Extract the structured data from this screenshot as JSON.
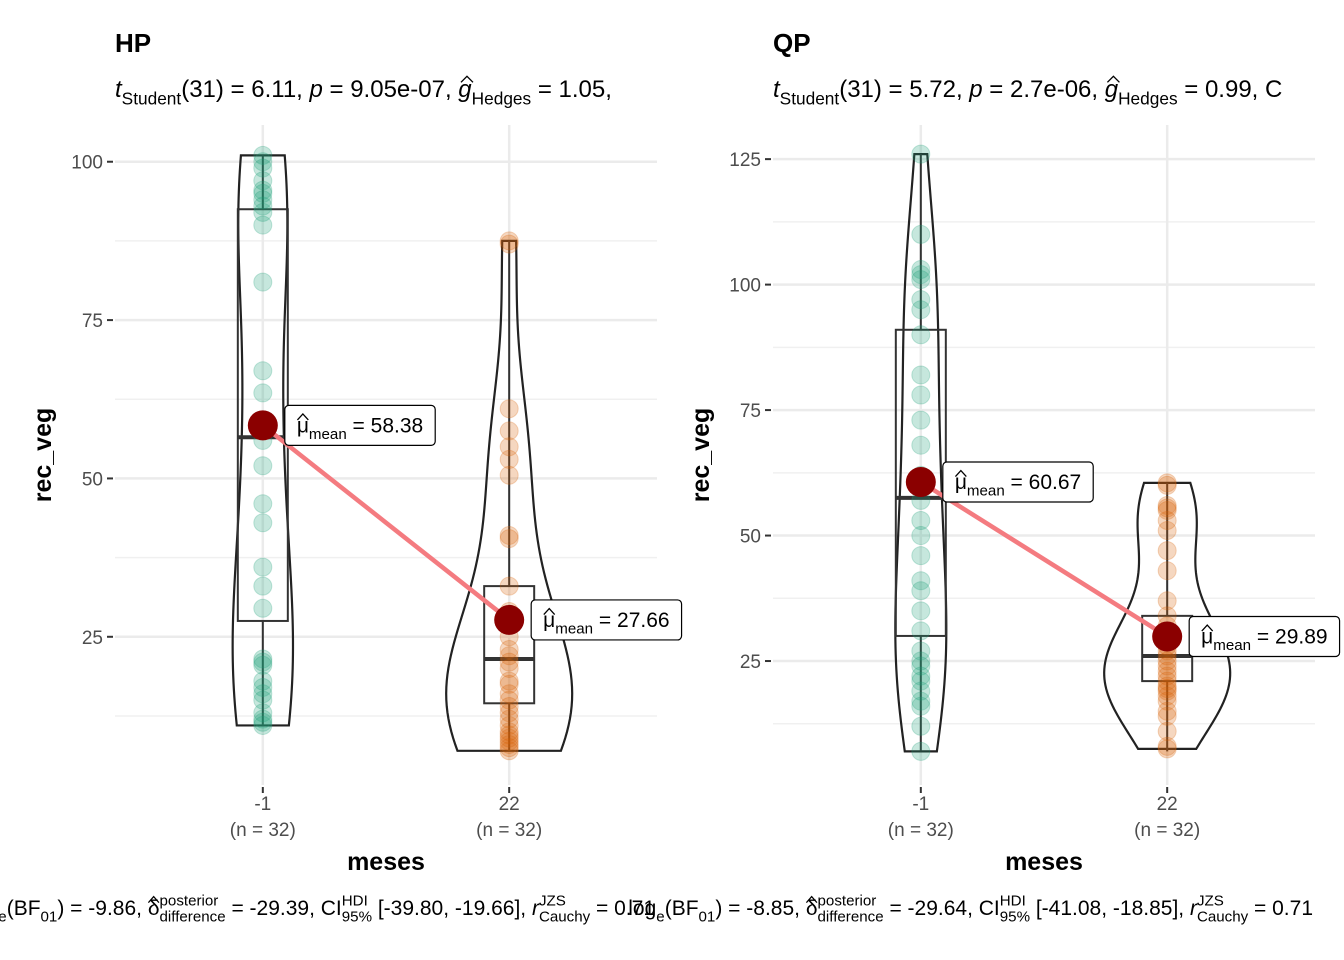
{
  "chart_data": [
    {
      "type": "violin-box",
      "title": "HP",
      "subtitle": [
        {
          "text": "t",
          "style": "italic"
        },
        {
          "text": "Student",
          "style": "sub"
        },
        {
          "text": "(31) = 6.11, ",
          "style": "normal"
        },
        {
          "text": "p",
          "style": "italic"
        },
        {
          "text": " = 9.05e-07, ",
          "style": "normal"
        },
        {
          "text": "g",
          "style": "ihat"
        },
        {
          "text": "Hedges",
          "style": "sub"
        },
        {
          "text": " = 1.05,",
          "style": "normal"
        }
      ],
      "caption": [
        {
          "text": "log",
          "style": "normal"
        },
        {
          "text": "e",
          "style": "sub"
        },
        {
          "text": "(BF",
          "style": "normal"
        },
        {
          "text": "01",
          "style": "sub"
        },
        {
          "text": ") = -9.86, ",
          "style": "normal"
        },
        {
          "text": "δ",
          "style": "hat"
        },
        {
          "text": "posterior",
          "style": "sup"
        },
        {
          "text": "difference",
          "style": "sub"
        },
        {
          "text": " = -29.39, CI",
          "style": "normal"
        },
        {
          "text": "HDI",
          "style": "sup"
        },
        {
          "text": "95%",
          "style": "sub"
        },
        {
          "text": " [-39.80, -19.66], ",
          "style": "normal"
        },
        {
          "text": "r",
          "style": "italic"
        },
        {
          "text": "JZS",
          "style": "sup"
        },
        {
          "text": "Cauchy",
          "style": "sub"
        },
        {
          "text": " = 0.71",
          "style": "normal"
        }
      ],
      "x_label": "meses",
      "y_label": "rec_veg",
      "categories": [
        "-1",
        "22"
      ],
      "n_labels": [
        "(n = 32)",
        "(n = 32)"
      ],
      "colors": [
        "#1b9e77",
        "#d95f02"
      ],
      "points": [
        [
          101,
          100,
          99,
          97,
          95.5,
          95,
          94,
          93,
          92,
          90,
          81,
          67,
          63.5,
          59,
          56,
          52,
          46,
          43,
          36,
          33,
          29.5,
          21.5,
          21,
          20.5,
          18,
          17,
          16,
          15,
          13,
          12,
          11.5,
          11
        ],
        [
          87.5,
          87,
          61,
          57.5,
          55,
          53,
          50.5,
          41,
          40.5,
          33,
          29,
          27,
          25,
          23,
          22,
          21,
          20,
          18,
          17.5,
          16,
          15,
          14,
          13,
          12,
          11,
          10,
          9.5,
          9,
          8.5,
          8,
          7.5,
          7
        ]
      ],
      "box": [
        {
          "whisker_low": 11,
          "q1": 27.5,
          "median": 56.5,
          "q3": 92.5,
          "whisker_high": 101
        },
        {
          "whisker_low": 7,
          "q1": 14.5,
          "median": 21.5,
          "q3": 33,
          "whisker_high": 87.5
        }
      ],
      "means": [
        58.38,
        27.66
      ],
      "mean_labels": [
        [
          {
            "text": "μ",
            "style": "hat"
          },
          {
            "text": "mean",
            "style": "sub"
          },
          {
            "text": " = 58.38",
            "style": "normal"
          }
        ],
        [
          {
            "text": "μ",
            "style": "hat"
          },
          {
            "text": "mean",
            "style": "sub"
          },
          {
            "text": " = 27.66",
            "style": "normal"
          }
        ]
      ],
      "mean_color": "#8b0000",
      "mean_line_color": "#f47b80",
      "ylim": [
        1.6,
        105.8
      ],
      "yticks": [
        25,
        50,
        75,
        100
      ],
      "grid": true
    },
    {
      "type": "violin-box",
      "title": "QP",
      "subtitle": [
        {
          "text": "t",
          "style": "italic"
        },
        {
          "text": "Student",
          "style": "sub"
        },
        {
          "text": "(31) = 5.72, ",
          "style": "normal"
        },
        {
          "text": "p",
          "style": "italic"
        },
        {
          "text": " = 2.7e-06, ",
          "style": "normal"
        },
        {
          "text": "g",
          "style": "ihat"
        },
        {
          "text": "Hedges",
          "style": "sub"
        },
        {
          "text": " = 0.99, C",
          "style": "normal"
        }
      ],
      "caption": [
        {
          "text": "log",
          "style": "normal"
        },
        {
          "text": "e",
          "style": "sub"
        },
        {
          "text": "(BF",
          "style": "normal"
        },
        {
          "text": "01",
          "style": "sub"
        },
        {
          "text": ") = -8.85, ",
          "style": "normal"
        },
        {
          "text": "δ",
          "style": "hat"
        },
        {
          "text": "posterior",
          "style": "sup"
        },
        {
          "text": "difference",
          "style": "sub"
        },
        {
          "text": " = -29.64, CI",
          "style": "normal"
        },
        {
          "text": "HDI",
          "style": "sup"
        },
        {
          "text": "95%",
          "style": "sub"
        },
        {
          "text": " [-41.08, -18.85], ",
          "style": "normal"
        },
        {
          "text": "r",
          "style": "italic"
        },
        {
          "text": "JZS",
          "style": "sup"
        },
        {
          "text": "Cauchy",
          "style": "sub"
        },
        {
          "text": " = 0.71",
          "style": "normal"
        }
      ],
      "x_label": "meses",
      "y_label": "rec_veg",
      "categories": [
        "-1",
        "22"
      ],
      "n_labels": [
        "(n = 32)",
        "(n = 32)"
      ],
      "colors": [
        "#1b9e77",
        "#d95f02"
      ],
      "points": [
        [
          126,
          110,
          103,
          102,
          101,
          97,
          95,
          90,
          82,
          78,
          73,
          68,
          62,
          60,
          57,
          53,
          50,
          46,
          41,
          39,
          35,
          31,
          27,
          25,
          24,
          22,
          21,
          19,
          17,
          16,
          12,
          7
        ],
        [
          60.5,
          60,
          56,
          55.5,
          55,
          53,
          51,
          47,
          43,
          37,
          34,
          32,
          30,
          29,
          28,
          27,
          26,
          25,
          24,
          23,
          22,
          21,
          20,
          19.5,
          19,
          18,
          17,
          15,
          14,
          11,
          8,
          7.5
        ]
      ],
      "box": [
        {
          "whisker_low": 7,
          "q1": 30,
          "median": 57.5,
          "q3": 91,
          "whisker_high": 126
        },
        {
          "whisker_low": 7,
          "q1": 21,
          "median": 26,
          "q3": 34,
          "whisker_high": 60.5
        }
      ],
      "means": [
        60.67,
        29.89
      ],
      "mean_labels": [
        [
          {
            "text": "μ",
            "style": "hat"
          },
          {
            "text": "mean",
            "style": "sub"
          },
          {
            "text": " = 60.67",
            "style": "normal"
          }
        ],
        [
          {
            "text": "μ",
            "style": "hat"
          },
          {
            "text": "mean",
            "style": "sub"
          },
          {
            "text": " = 29.89",
            "style": "normal"
          }
        ]
      ],
      "mean_color": "#8b0000",
      "mean_line_color": "#f47b80",
      "ylim": [
        0.3,
        131.8
      ],
      "yticks": [
        25,
        50,
        75,
        100,
        125
      ],
      "grid": true
    }
  ]
}
